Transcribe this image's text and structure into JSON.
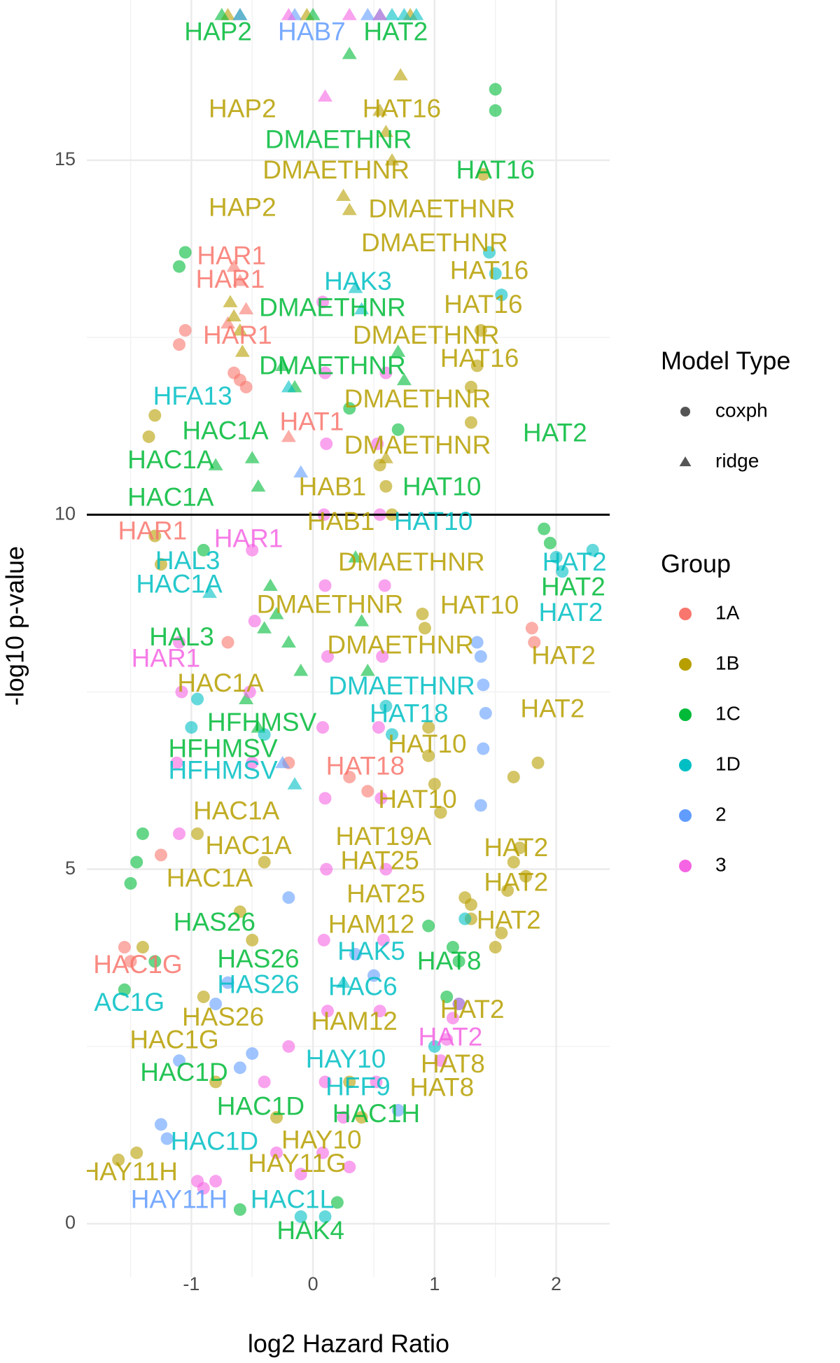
{
  "chart_data": {
    "type": "scatter",
    "x_label": "log2 Hazard Ratio",
    "y_label": "-log10 p-value",
    "xlim": [
      -1.86,
      2.44
    ],
    "ylim": [
      -0.75,
      17.2
    ],
    "xticks": [
      -1,
      0,
      1,
      2
    ],
    "yticks": [
      0,
      5,
      10,
      15
    ],
    "x_minor_grid": [
      -1.5,
      -0.5,
      0.5,
      1.5
    ],
    "y_minor_grid": [
      2.5,
      7.5,
      12.5
    ],
    "grid": true,
    "hline": 10,
    "shape_legend_title": "Model Type",
    "shape_legend": [
      {
        "label": "coxph",
        "shape": "circle"
      },
      {
        "label": "ridge",
        "shape": "triangle"
      }
    ],
    "color_legend_title": "Group",
    "series": [
      {
        "name": "1A",
        "color": "#F8766D",
        "circles": {
          "x": [
            -1.05,
            -1.1,
            -0.65,
            -0.6,
            -0.55,
            -0.7,
            -1.55,
            -1.5,
            -1.25,
            1.8,
            1.82,
            -0.2,
            0.3,
            0.45
          ],
          "y": [
            12.6,
            12.4,
            12.0,
            11.9,
            11.8,
            8.2,
            3.9,
            3.7,
            5.2,
            8.4,
            8.2,
            6.5,
            6.3,
            6.1
          ]
        },
        "triangles": {
          "x": [
            -0.65,
            -0.6,
            -0.55,
            -0.7,
            -0.2
          ],
          "y": [
            13.5,
            13.3,
            12.9,
            12.7,
            11.1
          ]
        }
      },
      {
        "name": "1B",
        "color": "#B79F00",
        "circles": {
          "x": [
            -0.95,
            -1.3,
            -1.35,
            -1.3,
            -1.25,
            -1.6,
            -1.45,
            -1.4,
            -0.9,
            -0.8,
            -0.6,
            -0.4,
            0.55,
            0.6,
            0.65,
            0.95,
            1.0,
            1.05,
            1.3,
            1.35,
            1.3,
            1.38,
            1.4,
            1.3,
            1.6,
            1.65,
            1.7,
            1.75,
            1.25,
            1.3,
            1.5,
            1.55,
            0.9,
            0.92,
            0.95,
            0.3,
            0.4,
            -0.5,
            -0.3,
            1.65,
            1.85
          ],
          "y": [
            5.5,
            11.4,
            11.1,
            9.7,
            9.3,
            0.9,
            1.0,
            3.9,
            3.2,
            2.0,
            4.4,
            5.1,
            10.7,
            10.4,
            10.0,
            6.6,
            6.2,
            5.8,
            11.8,
            12.1,
            11.3,
            12.6,
            14.8,
            4.5,
            4.7,
            5.1,
            5.3,
            4.9,
            4.6,
            4.3,
            3.9,
            4.1,
            8.6,
            8.4,
            7.0,
            2.0,
            1.5,
            4.0,
            1.5,
            6.3,
            6.5
          ]
        },
        "triangles": {
          "x": [
            -0.7,
            -0.68,
            -0.65,
            -0.6,
            -0.58,
            0.72,
            0.55,
            0.6,
            0.65,
            0.3,
            0.25,
            -0.05,
            0.8,
            0.6
          ],
          "y": [
            17.05,
            13.0,
            12.8,
            12.6,
            12.3,
            16.2,
            15.7,
            15.4,
            15.0,
            14.3,
            14.5,
            17.05,
            17.05,
            10.8
          ]
        }
      },
      {
        "name": "1C",
        "color": "#00BA38",
        "circles": {
          "x": [
            -1.05,
            -1.1,
            -1.4,
            -1.45,
            -1.5,
            -1.55,
            -1.3,
            -0.9,
            0.95,
            1.15,
            1.5,
            1.5,
            1.9,
            1.95,
            1.2,
            1.1,
            -0.6,
            0.2,
            0.3,
            0.7
          ],
          "y": [
            13.7,
            13.5,
            5.5,
            5.1,
            4.8,
            3.3,
            3.7,
            9.5,
            4.2,
            3.9,
            15.7,
            16.0,
            9.8,
            9.6,
            3.7,
            3.2,
            0.2,
            0.3,
            11.5,
            11.2
          ]
        },
        "triangles": {
          "x": [
            -0.75,
            -0.6,
            -0.5,
            -0.45,
            -0.35,
            -0.3,
            -0.2,
            -0.1,
            -0.4,
            -0.25,
            -0.15,
            -0.8,
            0.0,
            0.3,
            0.35,
            0.4,
            0.45,
            0.7,
            0.75,
            -0.55,
            -0.45
          ],
          "y": [
            17.05,
            17.05,
            10.8,
            10.4,
            9.0,
            8.6,
            8.2,
            7.8,
            8.4,
            12.1,
            11.8,
            10.7,
            17.05,
            16.5,
            9.4,
            8.5,
            7.8,
            12.3,
            11.9,
            7.4,
            7.0
          ]
        }
      },
      {
        "name": "1D",
        "color": "#00BFC4",
        "circles": {
          "x": [
            -0.4,
            1.45,
            1.5,
            1.55,
            0.6,
            0.65,
            1.25,
            1.0,
            -0.95,
            -1.0,
            2.0,
            2.05,
            2.3,
            1.2,
            -0.1,
            0.1
          ],
          "y": [
            6.9,
            13.7,
            13.4,
            13.1,
            7.3,
            6.9,
            4.3,
            2.5,
            7.4,
            7.0,
            9.4,
            9.2,
            9.5,
            3.1,
            0.1,
            0.1
          ]
        },
        "triangles": {
          "x": [
            0.55,
            0.65,
            0.75,
            0.85,
            0.35,
            0.4,
            -0.2,
            -0.85,
            -0.15,
            0.25
          ],
          "y": [
            17.05,
            17.05,
            17.05,
            17.05,
            13.2,
            12.9,
            11.8,
            8.9,
            6.2,
            3.4
          ]
        }
      },
      {
        "name": "2",
        "color": "#619CFF",
        "circles": {
          "x": [
            1.35,
            1.38,
            1.4,
            1.42,
            1.4,
            1.38,
            -1.2,
            -1.25,
            -1.1,
            -0.8,
            -0.7,
            -0.2,
            0.35,
            0.5,
            -0.5,
            -0.6,
            0.7
          ],
          "y": [
            8.2,
            8.0,
            7.6,
            7.2,
            6.7,
            5.9,
            1.2,
            1.4,
            2.3,
            3.1,
            3.4,
            4.6,
            3.8,
            3.5,
            2.4,
            2.2,
            1.6
          ]
        },
        "triangles": {
          "x": [
            -0.6,
            -0.15,
            0.45,
            -0.1,
            -0.25
          ],
          "y": [
            17.05,
            17.05,
            17.05,
            10.6,
            6.5
          ]
        }
      },
      {
        "name": "3",
        "color": "#F564E3",
        "circles": {
          "x": [
            0.08,
            0.1,
            0.12,
            0.09,
            0.11,
            0.1,
            0.08,
            0.12,
            0.1,
            0.09,
            0.11,
            0.1,
            0.08,
            0.52,
            0.55,
            0.58,
            0.6,
            0.56,
            0.54,
            0.57,
            0.59,
            0.55,
            0.53,
            0.6,
            -0.5,
            -0.52,
            -0.48,
            -0.5,
            -1.1,
            -1.12,
            -1.08,
            -1.1,
            1.05,
            1.1,
            1.15,
            1.2,
            -0.3,
            -0.1,
            0.3,
            -0.4,
            0.25,
            -0.2,
            -0.8,
            -0.9,
            -0.95
          ],
          "y": [
            1,
            2,
            3,
            4,
            5,
            6,
            7,
            8,
            9,
            10,
            11,
            12,
            13,
            2,
            3,
            4,
            5,
            6,
            7,
            8,
            9,
            10,
            11,
            12,
            6.5,
            7.5,
            8.5,
            9.5,
            5.5,
            6.5,
            7.5,
            8.2,
            2.3,
            2.6,
            2.9,
            3.1,
            1.0,
            0.7,
            0.8,
            2.0,
            1.5,
            2.5,
            0.6,
            0.5,
            0.6
          ]
        },
        "triangles": {
          "x": [
            -0.2,
            0.1,
            0.3,
            0.55
          ],
          "y": [
            17.05,
            15.9,
            17.05,
            17.05
          ]
        }
      }
    ],
    "labels": [
      {
        "text": "HAP2",
        "x": -0.78,
        "y": 16.79,
        "color": "#00BA38"
      },
      {
        "text": "HAB7",
        "x": -0.01,
        "y": 16.79,
        "color": "#619CFF"
      },
      {
        "text": "HAT2",
        "x": 0.68,
        "y": 16.79,
        "color": "#00BA38"
      },
      {
        "text": "HAP2",
        "x": -0.58,
        "y": 15.7,
        "color": "#B79F00"
      },
      {
        "text": "HAT16",
        "x": 0.73,
        "y": 15.7,
        "color": "#B79F00"
      },
      {
        "text": "DMAETHNR",
        "x": 0.21,
        "y": 15.27,
        "color": "#00BA38"
      },
      {
        "text": "DMAETHNR",
        "x": 0.19,
        "y": 14.84,
        "color": "#B79F00"
      },
      {
        "text": "HAT16",
        "x": 1.5,
        "y": 14.84,
        "color": "#00BA38"
      },
      {
        "text": "HAP2",
        "x": -0.58,
        "y": 14.31,
        "color": "#B79F00"
      },
      {
        "text": "DMAETHNR",
        "x": 1.06,
        "y": 14.29,
        "color": "#B79F00"
      },
      {
        "text": "DMAETHNR",
        "x": 1.0,
        "y": 13.81,
        "color": "#B79F00"
      },
      {
        "text": "HAR1",
        "x": -0.67,
        "y": 13.63,
        "color": "#F8766D"
      },
      {
        "text": "HAT16",
        "x": 1.45,
        "y": 13.42,
        "color": "#B79F00"
      },
      {
        "text": "HAR1",
        "x": -0.68,
        "y": 13.3,
        "color": "#F8766D"
      },
      {
        "text": "HAK3",
        "x": 0.37,
        "y": 13.27,
        "color": "#00BFC4"
      },
      {
        "text": "DMAETHNR",
        "x": 0.16,
        "y": 12.9,
        "color": "#00BA38"
      },
      {
        "text": "HAT16",
        "x": 1.4,
        "y": 12.94,
        "color": "#B79F00"
      },
      {
        "text": "HAR1",
        "x": -0.62,
        "y": 12.51,
        "color": "#F8766D"
      },
      {
        "text": "DMAETHNR",
        "x": 0.93,
        "y": 12.51,
        "color": "#B79F00"
      },
      {
        "text": "HAT16",
        "x": 1.37,
        "y": 12.18,
        "color": "#B79F00"
      },
      {
        "text": "DMAETHNR",
        "x": 0.16,
        "y": 12.08,
        "color": "#00BA38"
      },
      {
        "text": "HFA13",
        "x": -0.99,
        "y": 11.65,
        "color": "#00BFC4"
      },
      {
        "text": "DMAETHNR",
        "x": 0.86,
        "y": 11.61,
        "color": "#B79F00"
      },
      {
        "text": "HAT1",
        "x": -0.01,
        "y": 11.29,
        "color": "#F8766D"
      },
      {
        "text": "HAC1A",
        "x": -0.72,
        "y": 11.16,
        "color": "#00BA38"
      },
      {
        "text": "HAT2",
        "x": 1.99,
        "y": 11.13,
        "color": "#00BA38"
      },
      {
        "text": "HAC1A",
        "x": -1.17,
        "y": 10.75,
        "color": "#00BA38"
      },
      {
        "text": "DMAETHNR",
        "x": 0.86,
        "y": 10.96,
        "color": "#B79F00"
      },
      {
        "text": "HAB1",
        "x": 0.16,
        "y": 10.37,
        "color": "#B79F00"
      },
      {
        "text": "HAT10",
        "x": 1.06,
        "y": 10.37,
        "color": "#00BA38"
      },
      {
        "text": "HAC1A",
        "x": -1.17,
        "y": 10.22,
        "color": "#00BA38"
      },
      {
        "text": "HAR1",
        "x": -1.32,
        "y": 9.75,
        "color": "#F8766D"
      },
      {
        "text": "HAB1",
        "x": 0.23,
        "y": 9.88,
        "color": "#B79F00"
      },
      {
        "text": "HAT10",
        "x": 0.99,
        "y": 9.88,
        "color": "#00BFC4"
      },
      {
        "text": "HAR1",
        "x": -0.53,
        "y": 9.64,
        "color": "#F564E3"
      },
      {
        "text": "HAL3",
        "x": -1.03,
        "y": 9.33,
        "color": "#00BFC4"
      },
      {
        "text": "DMAETHNR",
        "x": 0.81,
        "y": 9.31,
        "color": "#B79F00"
      },
      {
        "text": "HAT2",
        "x": 2.15,
        "y": 9.31,
        "color": "#00BFC4"
      },
      {
        "text": "HAC1A",
        "x": -1.1,
        "y": 9.0,
        "color": "#00BFC4"
      },
      {
        "text": "HAT2",
        "x": 2.14,
        "y": 8.96,
        "color": "#00BA38"
      },
      {
        "text": "DMAETHNR",
        "x": 0.14,
        "y": 8.71,
        "color": "#B79F00"
      },
      {
        "text": "HAT10",
        "x": 1.37,
        "y": 8.7,
        "color": "#B79F00"
      },
      {
        "text": "HAT2",
        "x": 2.12,
        "y": 8.6,
        "color": "#00BFC4"
      },
      {
        "text": "HAL3",
        "x": -1.08,
        "y": 8.25,
        "color": "#00BA38"
      },
      {
        "text": "DMAETHNR",
        "x": 0.72,
        "y": 8.14,
        "color": "#B79F00"
      },
      {
        "text": "HAT2",
        "x": 2.06,
        "y": 7.99,
        "color": "#B79F00"
      },
      {
        "text": "HAR1",
        "x": -1.21,
        "y": 7.95,
        "color": "#F564E3"
      },
      {
        "text": "HAC1A",
        "x": -0.76,
        "y": 7.6,
        "color": "#B79F00"
      },
      {
        "text": "DMAETHNR",
        "x": 0.73,
        "y": 7.56,
        "color": "#00BFC4"
      },
      {
        "text": "HAT2",
        "x": 1.97,
        "y": 7.24,
        "color": "#B79F00"
      },
      {
        "text": "HAT18",
        "x": 0.79,
        "y": 7.17,
        "color": "#00BFC4"
      },
      {
        "text": "HFHMSV",
        "x": -0.42,
        "y": 7.05,
        "color": "#00BA38"
      },
      {
        "text": "HFHMSV",
        "x": -0.74,
        "y": 6.68,
        "color": "#00BA38"
      },
      {
        "text": "HAT10",
        "x": 0.94,
        "y": 6.74,
        "color": "#B79F00"
      },
      {
        "text": "HAT18",
        "x": 0.43,
        "y": 6.43,
        "color": "#F8766D"
      },
      {
        "text": "HFHMSV",
        "x": -0.74,
        "y": 6.37,
        "color": "#00BFC4"
      },
      {
        "text": "HAT10",
        "x": 0.86,
        "y": 5.96,
        "color": "#B79F00"
      },
      {
        "text": "HAC1A",
        "x": -0.63,
        "y": 5.8,
        "color": "#B79F00"
      },
      {
        "text": "HAT19A",
        "x": 0.58,
        "y": 5.44,
        "color": "#B79F00"
      },
      {
        "text": "HAT2",
        "x": 1.67,
        "y": 5.28,
        "color": "#B79F00"
      },
      {
        "text": "HAC1A",
        "x": -0.53,
        "y": 5.31,
        "color": "#B79F00"
      },
      {
        "text": "HAT25",
        "x": 0.55,
        "y": 5.1,
        "color": "#B79F00"
      },
      {
        "text": "HAC1A",
        "x": -0.85,
        "y": 4.85,
        "color": "#B79F00"
      },
      {
        "text": "HAT2",
        "x": 1.67,
        "y": 4.79,
        "color": "#B79F00"
      },
      {
        "text": "HAT25",
        "x": 0.6,
        "y": 4.63,
        "color": "#B79F00"
      },
      {
        "text": "HAS26",
        "x": -0.81,
        "y": 4.23,
        "color": "#00BA38"
      },
      {
        "text": "HAM12",
        "x": 0.48,
        "y": 4.2,
        "color": "#B79F00"
      },
      {
        "text": "HAT2",
        "x": 1.61,
        "y": 4.26,
        "color": "#B79F00"
      },
      {
        "text": "HAC1G",
        "x": -1.44,
        "y": 3.63,
        "color": "#F8766D"
      },
      {
        "text": "HAS26",
        "x": -0.45,
        "y": 3.71,
        "color": "#00BA38"
      },
      {
        "text": "HAK5",
        "x": 0.48,
        "y": 3.82,
        "color": "#00BFC4"
      },
      {
        "text": "HAT8",
        "x": 1.12,
        "y": 3.68,
        "color": "#00BA38"
      },
      {
        "text": "AC1G",
        "x": -1.51,
        "y": 3.1,
        "color": "#00BFC4"
      },
      {
        "text": "HAS26",
        "x": -0.45,
        "y": 3.35,
        "color": "#00BFC4"
      },
      {
        "text": "HAC6",
        "x": 0.41,
        "y": 3.32,
        "color": "#00BFC4"
      },
      {
        "text": "HAT2",
        "x": 1.31,
        "y": 3.0,
        "color": "#B79F00"
      },
      {
        "text": "HAS26",
        "x": -0.74,
        "y": 2.89,
        "color": "#B79F00"
      },
      {
        "text": "HAM12",
        "x": 0.34,
        "y": 2.83,
        "color": "#B79F00"
      },
      {
        "text": "HAC1G",
        "x": -1.14,
        "y": 2.57,
        "color": "#B79F00"
      },
      {
        "text": "HAT2",
        "x": 1.13,
        "y": 2.61,
        "color": "#F564E3"
      },
      {
        "text": "HAC1D",
        "x": -1.06,
        "y": 2.11,
        "color": "#00BA38"
      },
      {
        "text": "HAY10",
        "x": 0.27,
        "y": 2.3,
        "color": "#00BFC4"
      },
      {
        "text": "HAT8",
        "x": 1.15,
        "y": 2.23,
        "color": "#B79F00"
      },
      {
        "text": "HFF9",
        "x": 0.37,
        "y": 1.91,
        "color": "#00BFC4"
      },
      {
        "text": "HAT8",
        "x": 1.06,
        "y": 1.9,
        "color": "#B79F00"
      },
      {
        "text": "HAC1D",
        "x": -0.43,
        "y": 1.63,
        "color": "#00BA38"
      },
      {
        "text": "HAC1H",
        "x": 0.52,
        "y": 1.53,
        "color": "#00BA38"
      },
      {
        "text": "HAC1D",
        "x": -0.81,
        "y": 1.14,
        "color": "#00BFC4"
      },
      {
        "text": "HAY10",
        "x": 0.07,
        "y": 1.16,
        "color": "#B79F00"
      },
      {
        "text": "HAY11H",
        "x": -1.51,
        "y": 0.71,
        "color": "#B79F00"
      },
      {
        "text": "HAY11G",
        "x": -0.13,
        "y": 0.83,
        "color": "#B79F00"
      },
      {
        "text": "HAY11H",
        "x": -1.1,
        "y": 0.32,
        "color": "#619CFF"
      },
      {
        "text": "HAC1L",
        "x": -0.17,
        "y": 0.32,
        "color": "#00BFC4"
      },
      {
        "text": "HAK4",
        "x": -0.02,
        "y": -0.12,
        "color": "#00BA38"
      }
    ]
  }
}
